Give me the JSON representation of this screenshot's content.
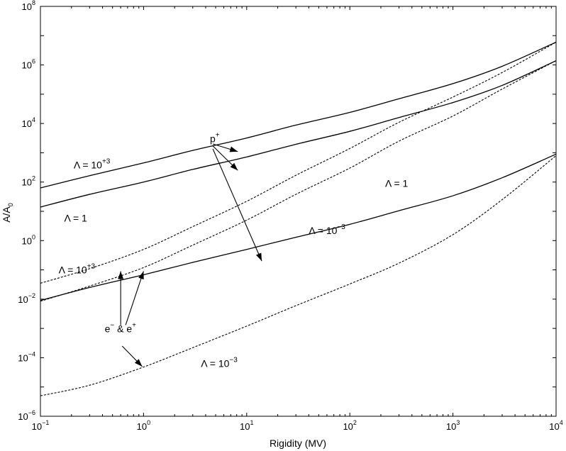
{
  "chart_data": {
    "type": "line",
    "xlabel": "Rigidity (MV)",
    "ylabel": "A/A",
    "ylabel_sub": "0",
    "xscale": "log",
    "yscale": "log",
    "xlim": [
      0.1,
      10000
    ],
    "ylim": [
      1e-06,
      100000000
    ],
    "grid": false,
    "xticks": [
      {
        "base": "10",
        "exp": "−1",
        "value": 0.1
      },
      {
        "base": "10",
        "exp": "0",
        "value": 1
      },
      {
        "base": "10",
        "exp": "1",
        "value": 10
      },
      {
        "base": "10",
        "exp": "2",
        "value": 100
      },
      {
        "base": "10",
        "exp": "3",
        "value": 1000
      },
      {
        "base": "10",
        "exp": "4",
        "value": 10000
      }
    ],
    "yticks": [
      {
        "base": "10",
        "exp": "−6",
        "value": 1e-06
      },
      {
        "base": "10",
        "exp": "−4",
        "value": 0.0001
      },
      {
        "base": "10",
        "exp": "−2",
        "value": 0.01
      },
      {
        "base": "10",
        "exp": "0",
        "value": 1
      },
      {
        "base": "10",
        "exp": "2",
        "value": 100
      },
      {
        "base": "10",
        "exp": "4",
        "value": 10000
      },
      {
        "base": "10",
        "exp": "6",
        "value": 1000000
      },
      {
        "base": "10",
        "exp": "8",
        "value": 100000000
      }
    ],
    "series": [
      {
        "style": "solid",
        "x": [
          0.1,
          0.3,
          1,
          3,
          10,
          30,
          100,
          300,
          1000,
          3000,
          10000
        ],
        "y": [
          63,
          165,
          450,
          1200,
          3200,
          8800,
          24000,
          70000,
          230000,
          900000,
          6000000
        ]
      },
      {
        "style": "solid",
        "x": [
          0.1,
          0.3,
          1,
          3,
          10,
          30,
          100,
          300,
          1000,
          3000,
          10000
        ],
        "y": [
          14,
          38,
          100,
          270,
          720,
          1950,
          5400,
          16000,
          52000,
          200000,
          1400000
        ]
      },
      {
        "style": "solid",
        "x": [
          0.1,
          0.3,
          1,
          3,
          10,
          30,
          100,
          300,
          1000,
          3000,
          10000
        ],
        "y": [
          0.009,
          0.025,
          0.068,
          0.18,
          0.5,
          1.3,
          3.6,
          10.5,
          34,
          140,
          900
        ]
      },
      {
        "style": "dashed",
        "x": [
          0.1,
          0.3,
          1,
          3,
          10,
          30,
          100,
          300,
          1000,
          3000,
          10000
        ],
        "y": [
          0.035,
          0.11,
          0.5,
          3,
          22,
          170,
          1400,
          11000,
          80000,
          550000,
          6000000
        ]
      },
      {
        "style": "dashed",
        "x": [
          0.1,
          0.3,
          1,
          3,
          10,
          30,
          100,
          300,
          1000,
          3000,
          10000
        ],
        "y": [
          0.0085,
          0.028,
          0.12,
          0.7,
          5,
          38,
          300,
          2500,
          18000,
          150000,
          1400000
        ]
      },
      {
        "style": "dashed",
        "x": [
          0.1,
          0.3,
          1,
          3,
          10,
          30,
          100,
          300,
          1000,
          3000,
          10000
        ],
        "y": [
          5e-06,
          1.15e-05,
          4.8e-05,
          0.00022,
          0.0012,
          0.006,
          0.033,
          0.17,
          1.6,
          25,
          800
        ]
      }
    ],
    "annotations": [
      {
        "prefix": "Λ = 10",
        "sup": "+3",
        "x": 0.21,
        "y": 290
      },
      {
        "prefix": "Λ = 1",
        "sup": "",
        "x": 0.17,
        "y": 4.5
      },
      {
        "prefix": "Λ = 10",
        "sup": "+3",
        "x": 0.15,
        "y": 0.075
      },
      {
        "prefix": "Λ = 1",
        "sup": "",
        "x": 220,
        "y": 68
      },
      {
        "prefix": "Λ = 10",
        "sup": "−3",
        "x": 40,
        "y": 1.7
      },
      {
        "prefix": "Λ = 10",
        "sup": "−3",
        "x": 3.6,
        "y": 4.8e-05
      },
      {
        "prefix": "p",
        "sup": "+",
        "x": 4.4,
        "y": 2300
      },
      {
        "prefix": "e",
        "sup": "−",
        "mid": " & e",
        "sup2": "+",
        "x": 0.42,
        "y": 0.00075
      }
    ],
    "arrows": [
      {
        "x1": 4.7,
        "y1": 2000,
        "x2": 8.2,
        "y2": 1100
      },
      {
        "x1": 4.7,
        "y1": 1700,
        "x2": 8.2,
        "y2": 250
      },
      {
        "x1": 4.7,
        "y1": 1350,
        "x2": 14,
        "y2": 0.2
      },
      {
        "x1": 0.6,
        "y1": 0.0013,
        "x2": 0.6,
        "y2": 0.09
      },
      {
        "x1": 0.67,
        "y1": 0.0013,
        "x2": 1.0,
        "y2": 0.09
      },
      {
        "x1": 0.62,
        "y1": 0.00025,
        "x2": 0.97,
        "y2": 5e-05
      }
    ]
  }
}
